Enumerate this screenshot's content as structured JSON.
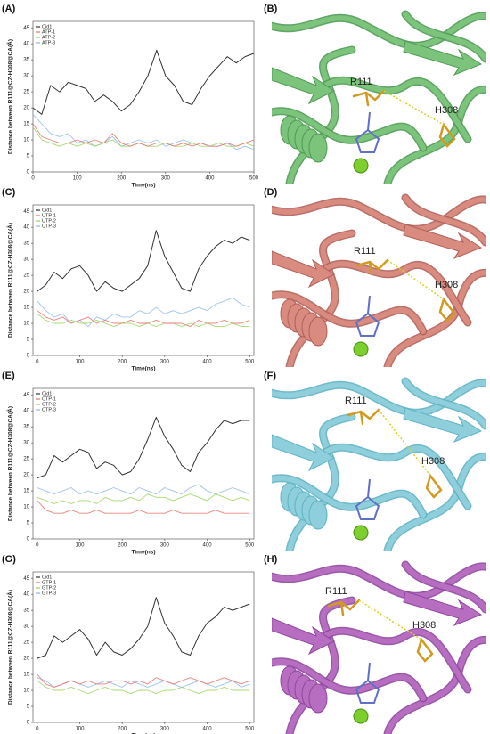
{
  "chart_data": [
    {
      "type": "line",
      "panel": "(A)",
      "xlabel": "Time(ns)",
      "ylabel": "Distance between R111@CZ-H308@CA(Å)",
      "x": [
        0,
        20,
        40,
        60,
        80,
        100,
        120,
        140,
        160,
        180,
        200,
        220,
        240,
        260,
        280,
        300,
        320,
        340,
        360,
        380,
        400,
        420,
        440,
        460,
        480,
        500
      ],
      "xlim": [
        0,
        500
      ],
      "xticks": [
        0,
        100,
        200,
        300,
        400,
        500
      ],
      "ylim": [
        0,
        47
      ],
      "yticks": [
        0,
        5,
        10,
        15,
        20,
        25,
        30,
        35,
        40,
        45
      ],
      "series": [
        {
          "name": "Cid1",
          "color": "#333333",
          "values": [
            20,
            18,
            27,
            25,
            28,
            27,
            26,
            22,
            24,
            22,
            19,
            21,
            25,
            30,
            38,
            30,
            27,
            22,
            21,
            26,
            30,
            33,
            36,
            34,
            36,
            37
          ]
        },
        {
          "name": "ATP-1",
          "color": "#e8706a",
          "values": [
            15,
            11,
            10,
            9,
            9,
            10,
            9,
            10,
            9,
            12,
            9,
            8,
            9,
            8,
            9,
            9,
            8,
            9,
            8,
            9,
            8,
            8,
            9,
            8,
            9,
            10
          ]
        },
        {
          "name": "ATP-2",
          "color": "#9ad45a",
          "values": [
            14,
            10,
            9,
            8,
            9,
            8,
            9,
            8,
            9,
            10,
            8,
            8,
            9,
            8,
            8,
            9,
            8,
            8,
            9,
            8,
            8,
            9,
            8,
            8,
            9,
            8
          ]
        },
        {
          "name": "ATP-3",
          "color": "#8fb8ea",
          "values": [
            18,
            15,
            12,
            11,
            12,
            9,
            10,
            8,
            9,
            11,
            8,
            9,
            10,
            9,
            10,
            8,
            9,
            10,
            9,
            9,
            8,
            8,
            9,
            7,
            8,
            7
          ]
        }
      ]
    },
    {
      "type": "line",
      "panel": "(C)",
      "xlabel": "Time(ns)",
      "ylabel": "Distance between R111@CZ-H308@CA(Å)",
      "x": [
        0,
        20,
        40,
        60,
        80,
        100,
        120,
        140,
        160,
        180,
        200,
        220,
        240,
        260,
        280,
        300,
        320,
        340,
        360,
        380,
        400,
        420,
        440,
        460,
        480,
        500
      ],
      "xlim": [
        -10,
        510
      ],
      "xticks": [
        0,
        100,
        200,
        300,
        400,
        500
      ],
      "ylim": [
        0,
        47
      ],
      "yticks": [
        0,
        5,
        10,
        15,
        20,
        25,
        30,
        35,
        40,
        45
      ],
      "series": [
        {
          "name": "Cid1",
          "color": "#333333",
          "values": [
            20,
            22,
            26,
            24,
            27,
            28,
            25,
            20,
            23,
            21,
            20,
            22,
            24,
            28,
            39,
            31,
            26,
            21,
            20,
            27,
            31,
            34,
            36,
            35,
            37,
            36
          ]
        },
        {
          "name": "UTP-1",
          "color": "#e8706a",
          "values": [
            14,
            12,
            11,
            12,
            10,
            11,
            12,
            10,
            11,
            10,
            10,
            11,
            10,
            10,
            11,
            10,
            10,
            10,
            9,
            11,
            10,
            10,
            11,
            10,
            10,
            11
          ]
        },
        {
          "name": "UTP-2",
          "color": "#9ad45a",
          "values": [
            13,
            11,
            10,
            10,
            11,
            10,
            10,
            11,
            10,
            9,
            10,
            10,
            9,
            10,
            9,
            10,
            10,
            9,
            10,
            9,
            10,
            9,
            9,
            10,
            9,
            9
          ]
        },
        {
          "name": "UTP-3",
          "color": "#8fb8ea",
          "values": [
            17,
            14,
            12,
            13,
            10,
            11,
            9,
            12,
            11,
            13,
            12,
            12,
            14,
            13,
            15,
            13,
            14,
            13,
            14,
            15,
            14,
            16,
            17,
            18,
            16,
            15
          ]
        }
      ]
    },
    {
      "type": "line",
      "panel": "(E)",
      "xlabel": "Time(ns)",
      "ylabel": "Distance between R111@CZ-H308@CA(Å)",
      "x": [
        0,
        20,
        40,
        60,
        80,
        100,
        120,
        140,
        160,
        180,
        200,
        220,
        240,
        260,
        280,
        300,
        320,
        340,
        360,
        380,
        400,
        420,
        440,
        460,
        480,
        500
      ],
      "xlim": [
        -10,
        510
      ],
      "xticks": [
        0,
        100,
        200,
        300,
        400,
        500
      ],
      "ylim": [
        0,
        47
      ],
      "yticks": [
        0,
        5,
        10,
        15,
        20,
        25,
        30,
        35,
        40,
        45
      ],
      "series": [
        {
          "name": "Cid1",
          "color": "#333333",
          "values": [
            19,
            20,
            26,
            24,
            26,
            28,
            27,
            22,
            24,
            23,
            20,
            21,
            25,
            31,
            38,
            32,
            28,
            23,
            21,
            27,
            30,
            34,
            37,
            36,
            37,
            37
          ]
        },
        {
          "name": "CTP-1",
          "color": "#e8706a",
          "values": [
            12,
            9,
            8,
            8,
            9,
            8,
            8,
            9,
            8,
            8,
            8,
            8,
            9,
            8,
            8,
            8,
            9,
            8,
            8,
            8,
            8,
            9,
            8,
            8,
            8,
            8
          ]
        },
        {
          "name": "CTP-2",
          "color": "#9ad45a",
          "values": [
            13,
            12,
            11,
            12,
            11,
            12,
            12,
            11,
            13,
            12,
            12,
            13,
            12,
            14,
            13,
            13,
            12,
            13,
            14,
            13,
            12,
            14,
            13,
            12,
            13,
            12
          ]
        },
        {
          "name": "CTP-3",
          "color": "#8fb8ea",
          "values": [
            16,
            15,
            14,
            15,
            16,
            14,
            15,
            14,
            15,
            16,
            15,
            14,
            16,
            15,
            14,
            16,
            15,
            14,
            16,
            17,
            15,
            14,
            15,
            16,
            15,
            14
          ]
        }
      ]
    },
    {
      "type": "line",
      "panel": "(G)",
      "xlabel": "Time(ns)",
      "ylabel": "Distance between R111@CZ-H308@CA(Å)",
      "x": [
        0,
        20,
        40,
        60,
        80,
        100,
        120,
        140,
        160,
        180,
        200,
        220,
        240,
        260,
        280,
        300,
        320,
        340,
        360,
        380,
        400,
        420,
        440,
        460,
        480,
        500
      ],
      "xlim": [
        -10,
        510
      ],
      "xticks": [
        0,
        100,
        200,
        300,
        400,
        500
      ],
      "ylim": [
        0,
        47
      ],
      "yticks": [
        0,
        5,
        10,
        15,
        20,
        25,
        30,
        35,
        40,
        45
      ],
      "series": [
        {
          "name": "Cid1",
          "color": "#333333",
          "values": [
            20,
            21,
            27,
            25,
            27,
            29,
            26,
            21,
            25,
            22,
            21,
            23,
            26,
            30,
            39,
            31,
            27,
            22,
            21,
            27,
            31,
            33,
            36,
            35,
            36,
            37
          ]
        },
        {
          "name": "GTP-1",
          "color": "#e8706a",
          "values": [
            15,
            12,
            11,
            12,
            13,
            12,
            13,
            12,
            12,
            13,
            13,
            12,
            13,
            12,
            14,
            13,
            12,
            13,
            14,
            13,
            12,
            13,
            14,
            13,
            12,
            13
          ]
        },
        {
          "name": "GTP-2",
          "color": "#9ad45a",
          "values": [
            13,
            11,
            10,
            10,
            11,
            10,
            9,
            10,
            11,
            10,
            10,
            9,
            10,
            10,
            9,
            10,
            10,
            11,
            10,
            9,
            10,
            10,
            11,
            10,
            10,
            10
          ]
        },
        {
          "name": "GTP-3",
          "color": "#8fb8ea",
          "values": [
            14,
            13,
            11,
            12,
            13,
            12,
            11,
            12,
            13,
            12,
            11,
            13,
            12,
            11,
            12,
            13,
            12,
            11,
            12,
            13,
            12,
            11,
            12,
            13,
            11,
            12
          ]
        }
      ]
    }
  ],
  "structures": [
    {
      "panel": "(B)",
      "residue_a": "R111",
      "residue_b": "H308"
    },
    {
      "panel": "(D)",
      "residue_a": "R111",
      "residue_b": "H308"
    },
    {
      "panel": "(F)",
      "residue_a": "R111",
      "residue_b": "H308"
    },
    {
      "panel": "(H)",
      "residue_a": "R111",
      "residue_b": "H308"
    }
  ]
}
